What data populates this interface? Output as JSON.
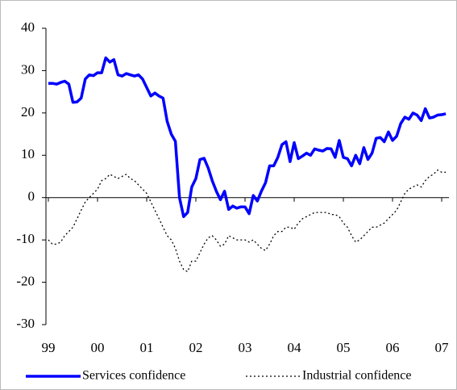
{
  "chart_data": {
    "type": "line",
    "categories": [
      "99",
      null,
      null,
      null,
      null,
      null,
      null,
      null,
      null,
      null,
      null,
      null,
      "00",
      null,
      null,
      null,
      null,
      null,
      null,
      null,
      null,
      null,
      null,
      null,
      "01",
      null,
      null,
      null,
      null,
      null,
      null,
      null,
      null,
      null,
      null,
      null,
      "02",
      null,
      null,
      null,
      null,
      null,
      null,
      null,
      null,
      null,
      null,
      null,
      "03",
      null,
      null,
      null,
      null,
      null,
      null,
      null,
      null,
      null,
      null,
      null,
      "04",
      null,
      null,
      null,
      null,
      null,
      null,
      null,
      null,
      null,
      null,
      null,
      "05",
      null,
      null,
      null,
      null,
      null,
      null,
      null,
      null,
      null,
      null,
      null,
      "06",
      null,
      null,
      null,
      null,
      null,
      null,
      null,
      null,
      null,
      null,
      null,
      "07",
      null
    ],
    "series": [
      {
        "name": "Services confidence",
        "color": "#0000ff",
        "style": "solid",
        "values": [
          27,
          27,
          26.8,
          27.2,
          27.5,
          26.8,
          22.5,
          22.6,
          23.5,
          28,
          29,
          28.8,
          29.5,
          29.5,
          33,
          32,
          32.6,
          29,
          28.7,
          29.3,
          29,
          28.7,
          29,
          28,
          26,
          24,
          24.7,
          24,
          23.5,
          18,
          15,
          13.3,
          0,
          -4.5,
          -3.5,
          2.5,
          4.5,
          9,
          9.3,
          7,
          4,
          1.5,
          -0.5,
          1.5,
          -2.8,
          -2,
          -2.5,
          -2.2,
          -2.2,
          -3.8,
          0.5,
          -0.8,
          1.5,
          3.5,
          7.5,
          7.5,
          9.5,
          12.5,
          13.2,
          8.5,
          13,
          9.2,
          9.8,
          10.5,
          10,
          11.5,
          11.2,
          11,
          11.6,
          11.5,
          9.5,
          13.5,
          9.5,
          9.2,
          7.5,
          10,
          8,
          11.8,
          9,
          10.5,
          14,
          14.2,
          13.2,
          15.5,
          13.5,
          14.5,
          17.5,
          19,
          18.5,
          20,
          19.5,
          18.2,
          21,
          18.8,
          19,
          19.5,
          19.6,
          19.8
        ]
      },
      {
        "name": "Industrial confidence",
        "color": "#000000",
        "style": "dotted",
        "values": [
          -10,
          -11,
          -11,
          -10.5,
          -9,
          -8,
          -7,
          -5,
          -3,
          -1,
          0,
          1,
          2,
          4,
          4.5,
          5.5,
          5,
          4.5,
          5,
          5.5,
          4.5,
          4,
          3,
          2,
          1,
          -1,
          -3,
          -5,
          -7,
          -9,
          -10,
          -12,
          -15,
          -17,
          -17.5,
          -15,
          -15,
          -13,
          -11,
          -9.5,
          -9,
          -10,
          -11.5,
          -11,
          -9,
          -9.5,
          -10,
          -10,
          -10,
          -10.5,
          -10,
          -11,
          -12,
          -12.5,
          -11,
          -9,
          -8,
          -8,
          -7,
          -7,
          -7.5,
          -6,
          -5,
          -4.5,
          -4,
          -3.5,
          -3.5,
          -3.5,
          -3.5,
          -4,
          -4,
          -4.5,
          -6,
          -7,
          -9,
          -10.5,
          -10,
          -9,
          -8,
          -7,
          -7,
          -6.5,
          -6,
          -5,
          -4,
          -3,
          -1,
          1,
          2,
          2.5,
          3,
          2.5,
          4,
          5,
          5.5,
          6.5,
          6,
          6
        ]
      }
    ],
    "ylim": [
      -30,
      40
    ],
    "yticks": [
      -30,
      -20,
      -10,
      0,
      10,
      20,
      30,
      40
    ],
    "legend": "bottom"
  }
}
